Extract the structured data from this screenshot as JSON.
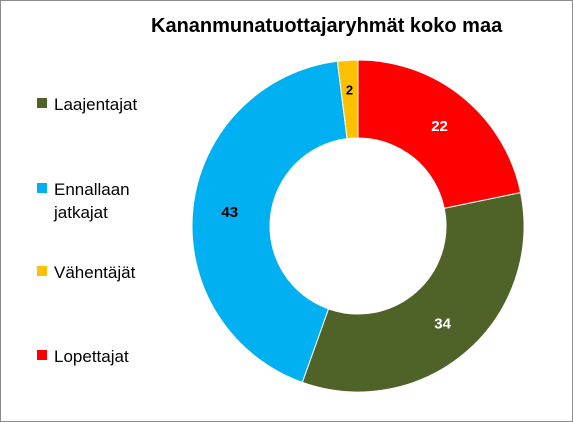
{
  "chart_data": {
    "type": "pie",
    "title": "Kananmunatuottajaryhmät koko maa",
    "categories": [
      "Lopettajat",
      "Laajentajat",
      "Ennallaan jatkajat",
      "Vähentäjät"
    ],
    "values": [
      22,
      34,
      43,
      2
    ],
    "colors": [
      "#ff0000",
      "#4f6228",
      "#00b0f0",
      "#ffc000"
    ],
    "legend": {
      "placement": "left",
      "entries": [
        {
          "label": "Laajentajat",
          "color": "#4f6228"
        },
        {
          "label": "Ennallaan jatkajat",
          "color": "#00b0f0"
        },
        {
          "label": "Vähentäjät",
          "color": "#ffc000"
        },
        {
          "label": "Lopettajat",
          "color": "#ff0000"
        }
      ]
    },
    "data_label_colors": [
      "#ffffff",
      "#ffffff",
      "#000000",
      "#000000"
    ]
  }
}
